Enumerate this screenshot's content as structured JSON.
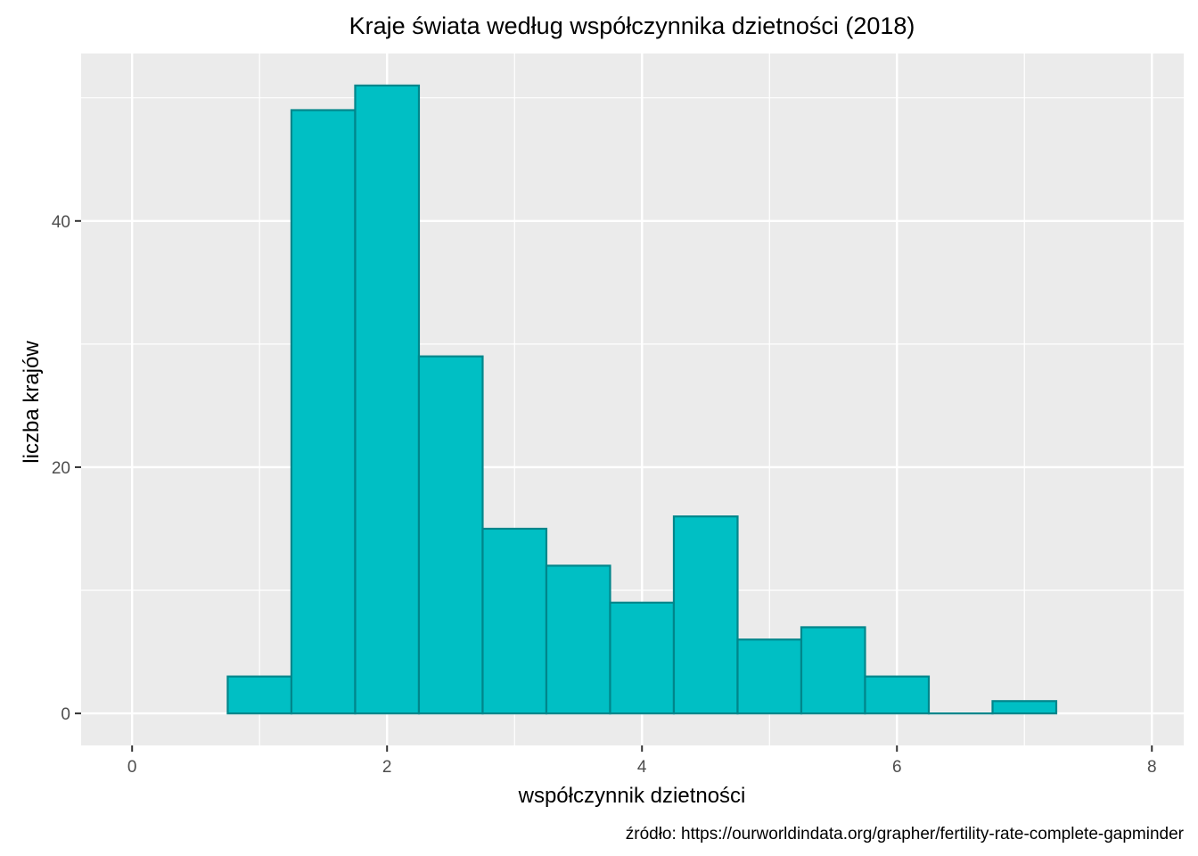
{
  "chart_data": {
    "type": "bar",
    "subtype": "histogram",
    "title": "Kraje świata według współczynnika dzietności (2018)",
    "xlabel": "współczynnik dzietności",
    "ylabel": "liczba krajów",
    "caption": "źródło: https://ourworldindata.org/grapher/fertility-rate-complete-gapminder",
    "bin_width": 0.5,
    "bins": [
      {
        "x_start": 0.75,
        "x_end": 1.25,
        "count": 3
      },
      {
        "x_start": 1.25,
        "x_end": 1.75,
        "count": 49
      },
      {
        "x_start": 1.75,
        "x_end": 2.25,
        "count": 51
      },
      {
        "x_start": 2.25,
        "x_end": 2.75,
        "count": 29
      },
      {
        "x_start": 2.75,
        "x_end": 3.25,
        "count": 15
      },
      {
        "x_start": 3.25,
        "x_end": 3.75,
        "count": 12
      },
      {
        "x_start": 3.75,
        "x_end": 4.25,
        "count": 9
      },
      {
        "x_start": 4.25,
        "x_end": 4.75,
        "count": 16
      },
      {
        "x_start": 4.75,
        "x_end": 5.25,
        "count": 6
      },
      {
        "x_start": 5.25,
        "x_end": 5.75,
        "count": 7
      },
      {
        "x_start": 5.75,
        "x_end": 6.25,
        "count": 3
      },
      {
        "x_start": 6.25,
        "x_end": 6.75,
        "count": 0
      },
      {
        "x_start": 6.75,
        "x_end": 7.25,
        "count": 1
      }
    ],
    "x_ticks": [
      0,
      2,
      4,
      6,
      8
    ],
    "y_ticks": [
      0,
      20,
      40
    ],
    "xlim": [
      -0.4,
      8.25
    ],
    "ylim": [
      -2.6,
      53.6
    ],
    "grid": true,
    "colors": {
      "bar_fill": "#00bfc4",
      "bar_outline": "#00868b",
      "panel_background": "#ebebeb",
      "grid": "#ffffff"
    }
  }
}
